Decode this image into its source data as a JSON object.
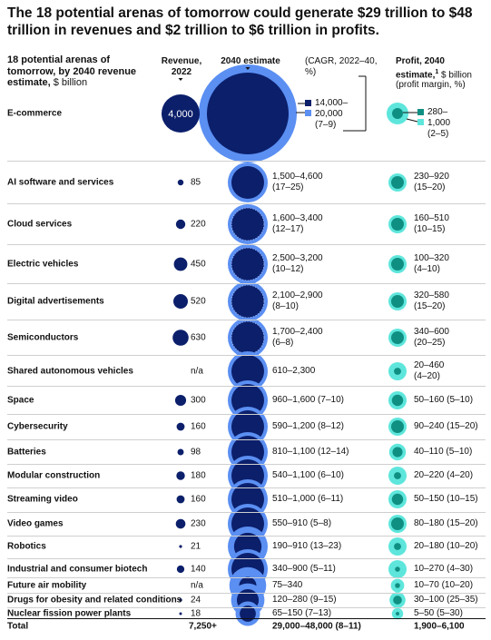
{
  "title": "The 18 potential arenas of tomorrow could generate $29 trillion to $48 trillion in revenues and $2 trillion to $6 trillion in profits.",
  "header": {
    "subtitle_bold": "18 potential arenas of tomorrow, by 2040 revenue estimate,",
    "subtitle_unit": " $ billion",
    "revenue_col": "Revenue, 2022",
    "estimate_col": "2040 estimate",
    "cagr_note": "(CAGR, 2022–40, %)",
    "profit_col_bold": "Profit, 2040 estimate,",
    "profit_sup": "1",
    "profit_unit": " $ billion (profit margin, %)"
  },
  "legend": {
    "est_low": "14,000–",
    "est_high": "20,000",
    "est_cagr": "(7–9)",
    "profit_low": "280–",
    "profit_high": "1,000",
    "profit_margin": "(2–5)"
  },
  "total": {
    "label": "Total",
    "revenue": "7,250+",
    "estimate": "29,000–48,000 (8–11)",
    "profit": "1,900–6,100"
  },
  "colors": {
    "navy": "#0b1f6b",
    "blue": "#5b8ff2",
    "teal_dark": "#0f8f82",
    "teal_light": "#5ee6dc"
  },
  "chart_data": {
    "type": "bubble_table",
    "title": "The 18 potential arenas of tomorrow could generate $29 trillion to $48 trillion in revenues and $2 trillion to $6 trillion in profits.",
    "rows": [
      {
        "arena": "E-commerce",
        "revenue_2022": 4000,
        "revenue_2022_label": "4,000",
        "est_low": 14000,
        "est_high": 20000,
        "cagr": "7–9",
        "profit_low": 280,
        "profit_high": 1000,
        "margin": "2–5"
      },
      {
        "arena": "AI software and services",
        "revenue_2022": 85,
        "revenue_2022_label": "85",
        "est_low": 1500,
        "est_high": 4600,
        "est_label": "1,500–4,600",
        "cagr": "17–25",
        "profit_low": 230,
        "profit_high": 920,
        "profit_label": "230–920",
        "margin": "15–20"
      },
      {
        "arena": "Cloud services",
        "revenue_2022": 220,
        "revenue_2022_label": "220",
        "est_low": 1600,
        "est_high": 3400,
        "est_label": "1,600–3,400",
        "cagr": "12–17",
        "profit_low": 160,
        "profit_high": 510,
        "profit_label": "160–510",
        "margin": "10–15"
      },
      {
        "arena": "Electric vehicles",
        "revenue_2022": 450,
        "revenue_2022_label": "450",
        "est_low": 2500,
        "est_high": 3200,
        "est_label": "2,500–3,200",
        "cagr": "10–12",
        "profit_low": 100,
        "profit_high": 320,
        "profit_label": "100–320",
        "margin": "4–10"
      },
      {
        "arena": "Digital advertisements",
        "revenue_2022": 520,
        "revenue_2022_label": "520",
        "est_low": 2100,
        "est_high": 2900,
        "est_label": "2,100–2,900",
        "cagr": "8–10",
        "profit_low": 320,
        "profit_high": 580,
        "profit_label": "320–580",
        "margin": "15–20"
      },
      {
        "arena": "Semiconductors",
        "revenue_2022": 630,
        "revenue_2022_label": "630",
        "est_low": 1700,
        "est_high": 2400,
        "est_label": "1,700–2,400",
        "cagr": "6–8",
        "profit_low": 340,
        "profit_high": 600,
        "profit_label": "340–600",
        "margin": "20–25"
      },
      {
        "arena": "Shared autonomous vehicles",
        "revenue_2022": null,
        "revenue_2022_label": "n/a",
        "est_low": 610,
        "est_high": 2300,
        "est_label": "610–2,300",
        "cagr": "",
        "profit_low": 20,
        "profit_high": 460,
        "profit_label": "20–460",
        "margin": "4–20"
      },
      {
        "arena": "Space",
        "revenue_2022": 300,
        "revenue_2022_label": "300",
        "est_low": 960,
        "est_high": 1600,
        "est_label": "960–1,600 (7–10)",
        "profit_low": 50,
        "profit_high": 160,
        "profit_label": "50–160 (5–10)"
      },
      {
        "arena": "Cybersecurity",
        "revenue_2022": 160,
        "revenue_2022_label": "160",
        "est_low": 590,
        "est_high": 1200,
        "est_label": "590–1,200 (8–12)",
        "profit_low": 90,
        "profit_high": 240,
        "profit_label": "90–240 (15–20)"
      },
      {
        "arena": "Batteries",
        "revenue_2022": 98,
        "revenue_2022_label": "98",
        "est_low": 810,
        "est_high": 1100,
        "est_label": "810–1,100 (12–14)",
        "profit_low": 40,
        "profit_high": 110,
        "profit_label": "40–110 (5–10)"
      },
      {
        "arena": "Modular construction",
        "revenue_2022": 180,
        "revenue_2022_label": "180",
        "est_low": 540,
        "est_high": 1100,
        "est_label": "540–1,100 (6–10)",
        "profit_low": 20,
        "profit_high": 220,
        "profit_label": "20–220 (4–20)"
      },
      {
        "arena": "Streaming video",
        "revenue_2022": 160,
        "revenue_2022_label": "160",
        "est_low": 510,
        "est_high": 1000,
        "est_label": "510–1,000 (6–11)",
        "profit_low": 50,
        "profit_high": 150,
        "profit_label": "50–150 (10–15)"
      },
      {
        "arena": "Video games",
        "revenue_2022": 230,
        "revenue_2022_label": "230",
        "est_low": 550,
        "est_high": 910,
        "est_label": "550–910 (5–8)",
        "profit_low": 80,
        "profit_high": 180,
        "profit_label": "80–180 (15–20)"
      },
      {
        "arena": "Robotics",
        "revenue_2022": 21,
        "revenue_2022_label": "21",
        "est_low": 190,
        "est_high": 910,
        "est_label": "190–910 (13–23)",
        "profit_low": 20,
        "profit_high": 180,
        "profit_label": "20–180 (10–20)"
      },
      {
        "arena": "Industrial and consumer biotech",
        "revenue_2022": 140,
        "revenue_2022_label": "140",
        "est_low": 340,
        "est_high": 900,
        "est_label": "340–900 (5–11)",
        "profit_low": 10,
        "profit_high": 270,
        "profit_label": "10–270 (4–30)"
      },
      {
        "arena": "Future air mobility",
        "revenue_2022": null,
        "revenue_2022_label": "n/a",
        "est_low": 75,
        "est_high": 340,
        "est_label": "75–340",
        "profit_low": 10,
        "profit_high": 70,
        "profit_label": "10–70 (10–20)"
      },
      {
        "arena": "Drugs for obesity and related conditions",
        "revenue_2022": 24,
        "revenue_2022_label": "24",
        "est_low": 120,
        "est_high": 280,
        "est_label": "120–280 (9–15)",
        "profit_low": 30,
        "profit_high": 100,
        "profit_label": "30–100 (25–35)"
      },
      {
        "arena": "Nuclear fission power plants",
        "revenue_2022": 18,
        "revenue_2022_label": "18",
        "est_low": 65,
        "est_high": 150,
        "est_label": "65–150 (7–13)",
        "profit_low": 5,
        "profit_high": 50,
        "profit_label": "5–50 (5–30)"
      }
    ]
  }
}
